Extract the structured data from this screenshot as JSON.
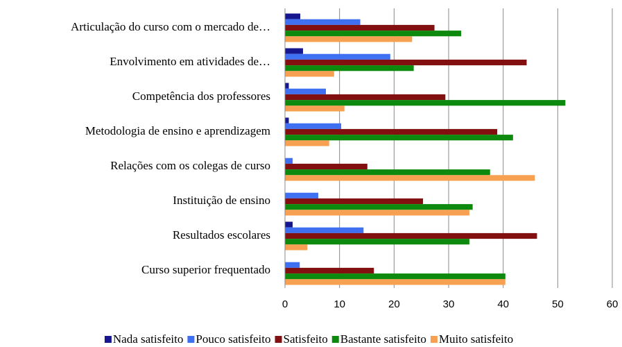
{
  "chart_data": {
    "type": "barh",
    "categories": [
      "Articulação do curso com o mercado de…",
      "Envolvimento em atividades de…",
      "Competência dos professores",
      "Metodologia de ensino e aprendizagem",
      "Relações com os colegas de curso",
      "Instituição de ensino",
      "Resultados escolares",
      "Curso superior frequentado"
    ],
    "series": [
      {
        "name": "Nada satisfeito",
        "color": "#16168f",
        "values": [
          2.8,
          3.3,
          0.7,
          0.7,
          0,
          0,
          1.4,
          0
        ]
      },
      {
        "name": "Pouco satisfeito",
        "color": "#3f70f2",
        "values": [
          13.8,
          19.3,
          7.5,
          10.3,
          1.4,
          6.1,
          14.4,
          2.7
        ]
      },
      {
        "name": "Satisfeito",
        "color": "#821010",
        "values": [
          27.4,
          44.3,
          29.4,
          38.9,
          15.1,
          25.3,
          46.2,
          16.3
        ]
      },
      {
        "name": "Bastante satisfeito",
        "color": "#0d8a0d",
        "values": [
          32.3,
          23.6,
          51.4,
          41.8,
          37.6,
          34.4,
          33.8,
          40.4
        ]
      },
      {
        "name": "Muito satisfeito",
        "color": "#f7a052",
        "values": [
          23.3,
          9.0,
          10.9,
          8.1,
          45.8,
          33.8,
          4.1,
          40.4
        ]
      }
    ],
    "xlim": [
      0,
      60
    ],
    "xticks": [
      0,
      10,
      20,
      30,
      40,
      50,
      60
    ],
    "grid": true,
    "legend": "bottom"
  }
}
